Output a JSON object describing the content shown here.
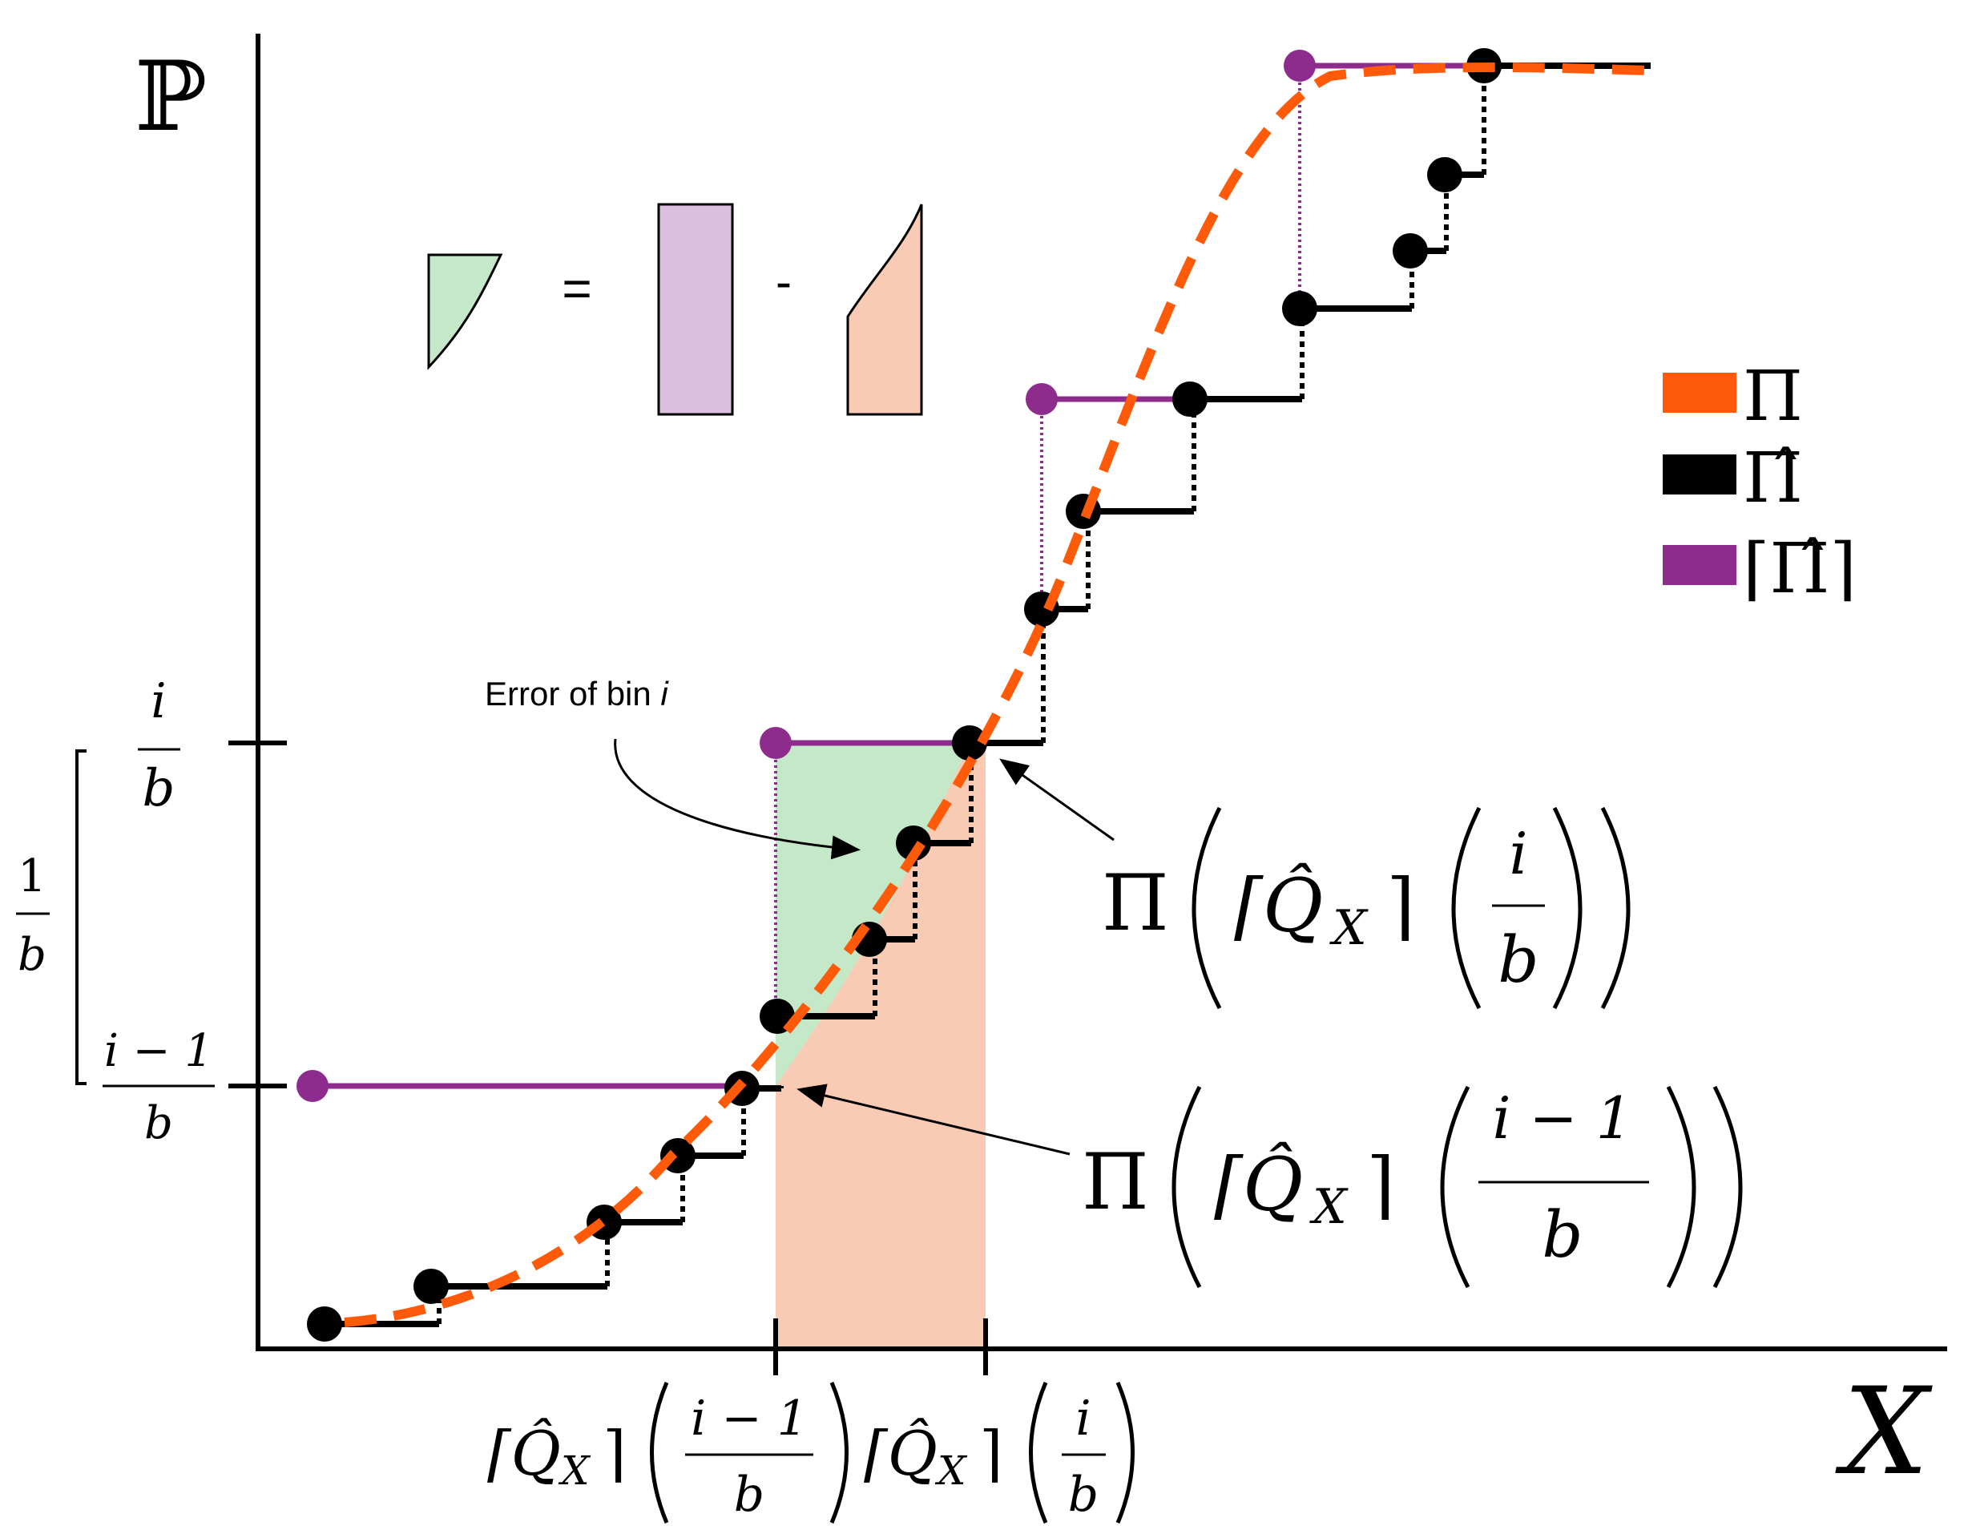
{
  "colors": {
    "true_cdf": "#ff5a0a",
    "empirical_cdf": "#000000",
    "ceiling_cdf": "#8e2c8e",
    "error_fill": "#c5e8c8",
    "rect_fill": "#dcc0e0",
    "band_fill": "#f9cbb5"
  },
  "axes": {
    "y_label": "ℙ",
    "x_label": "X",
    "y_tick_upper": {
      "num": "i",
      "den": "b"
    },
    "y_tick_lower": {
      "num": "i − 1",
      "den": "b"
    },
    "bin_height": {
      "num": "1",
      "den": "b"
    },
    "x_tick_left": {
      "pre": "⌈Q̂",
      "sub": "X",
      "post": "⌉",
      "num": "i − 1",
      "den": "b"
    },
    "x_tick_right": {
      "pre": "⌈Q̂",
      "sub": "X",
      "post": "⌉",
      "num": "i",
      "den": "b"
    }
  },
  "equation": {
    "equals": "=",
    "minus": "-"
  },
  "legend": [
    {
      "key": "true",
      "label": "Π",
      "color": "#ff5a0a"
    },
    {
      "key": "empirical",
      "label": "Π̂",
      "color": "#000000"
    },
    {
      "key": "ceiling",
      "label": "⌈Π̂⌉",
      "color": "#8e2c8e"
    }
  ],
  "annotations": {
    "error_label": "Error of bin ",
    "error_label_var": "i",
    "upper_eval": {
      "pi": "Π",
      "pre": "⌈Q̂",
      "sub": "X",
      "post": "⌉",
      "num": "i",
      "den": "b"
    },
    "lower_eval": {
      "pi": "Π",
      "pre": "⌈Q̂",
      "sub": "X",
      "post": "⌉",
      "num": "i − 1",
      "den": "b"
    }
  }
}
